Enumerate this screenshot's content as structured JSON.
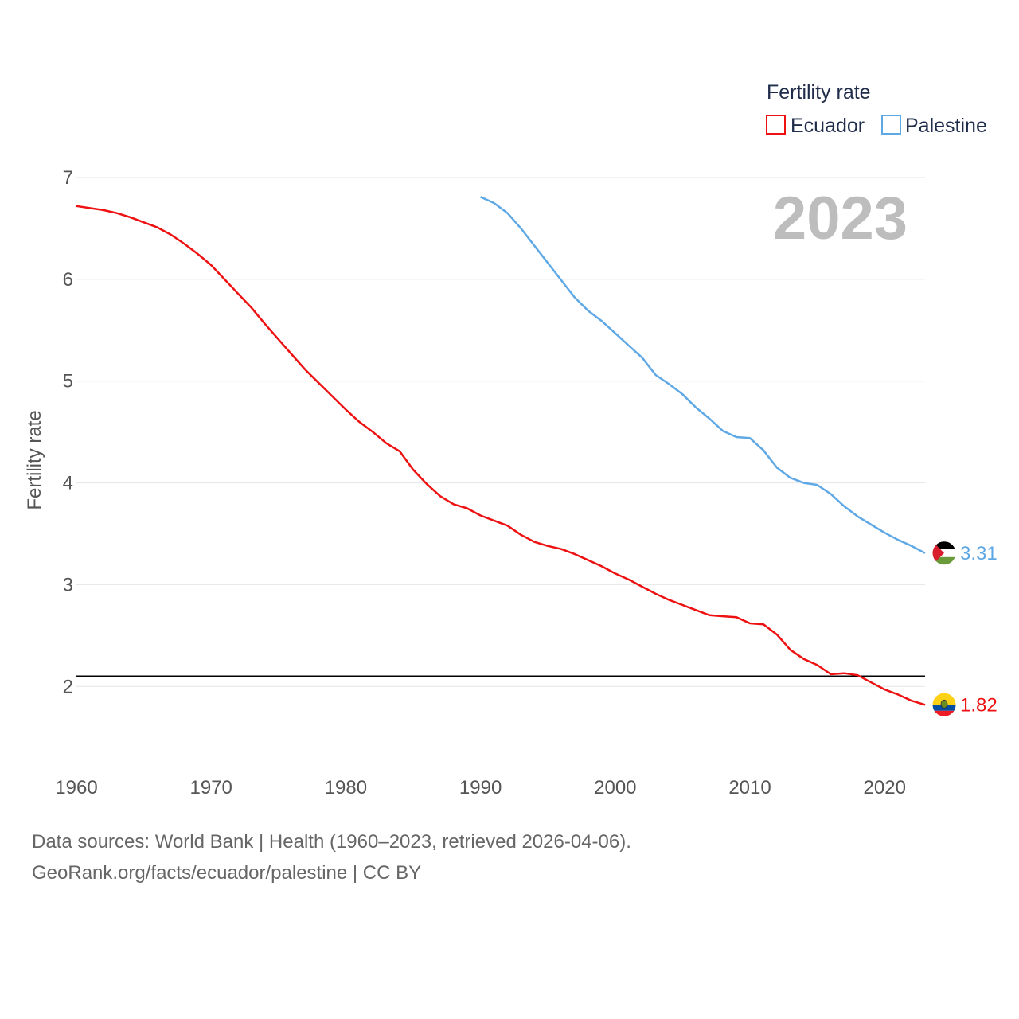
{
  "chart_data": {
    "type": "line",
    "legend_title": "Fertility rate",
    "ylabel": "Fertility rate",
    "year_label": "2023",
    "xlim": [
      1960,
      2023
    ],
    "ylim": [
      1.4,
      7.0
    ],
    "x_ticks": [
      1960,
      1970,
      1980,
      1990,
      2000,
      2010,
      2020
    ],
    "y_ticks": [
      2,
      3,
      4,
      5,
      6,
      7
    ],
    "reference_line": 2.1,
    "series": [
      {
        "name": "Ecuador",
        "color": "#ee1111",
        "end_label": "1.82",
        "flag": "ecuador-flag",
        "x": [
          1960,
          1961,
          1962,
          1963,
          1964,
          1965,
          1966,
          1967,
          1968,
          1969,
          1970,
          1971,
          1972,
          1973,
          1974,
          1975,
          1976,
          1977,
          1978,
          1979,
          1980,
          1981,
          1982,
          1983,
          1984,
          1985,
          1986,
          1987,
          1988,
          1989,
          1990,
          1991,
          1992,
          1993,
          1994,
          1995,
          1996,
          1997,
          1998,
          1999,
          2000,
          2001,
          2002,
          2003,
          2004,
          2005,
          2006,
          2007,
          2008,
          2009,
          2010,
          2011,
          2012,
          2013,
          2014,
          2015,
          2016,
          2017,
          2018,
          2019,
          2020,
          2021,
          2022,
          2023
        ],
        "values": [
          6.72,
          6.7,
          6.68,
          6.65,
          6.61,
          6.56,
          6.51,
          6.44,
          6.35,
          6.25,
          6.14,
          6.0,
          5.86,
          5.72,
          5.56,
          5.41,
          5.26,
          5.11,
          4.98,
          4.85,
          4.72,
          4.6,
          4.5,
          4.39,
          4.31,
          4.13,
          3.99,
          3.87,
          3.79,
          3.75,
          3.68,
          3.63,
          3.58,
          3.49,
          3.42,
          3.38,
          3.35,
          3.3,
          3.24,
          3.18,
          3.11,
          3.05,
          2.98,
          2.91,
          2.85,
          2.8,
          2.75,
          2.7,
          2.69,
          2.68,
          2.62,
          2.61,
          2.51,
          2.36,
          2.27,
          2.21,
          2.12,
          2.13,
          2.11,
          2.04,
          1.97,
          1.92,
          1.86,
          1.82
        ]
      },
      {
        "name": "Palestine",
        "color": "#5fa8e6",
        "end_label": "3.31",
        "flag": "palestine-flag",
        "x": [
          1990,
          1991,
          1992,
          1993,
          1994,
          1995,
          1996,
          1997,
          1998,
          1999,
          2000,
          2001,
          2002,
          2003,
          2004,
          2005,
          2006,
          2007,
          2008,
          2009,
          2010,
          2011,
          2012,
          2013,
          2014,
          2015,
          2016,
          2017,
          2018,
          2019,
          2020,
          2021,
          2022,
          2023
        ],
        "values": [
          6.81,
          6.75,
          6.65,
          6.5,
          6.33,
          6.16,
          5.99,
          5.82,
          5.69,
          5.59,
          5.47,
          5.35,
          5.23,
          5.06,
          4.97,
          4.87,
          4.74,
          4.63,
          4.51,
          4.45,
          4.44,
          4.32,
          4.15,
          4.05,
          4.0,
          3.98,
          3.89,
          3.77,
          3.67,
          3.59,
          3.51,
          3.44,
          3.38,
          3.31
        ]
      }
    ]
  },
  "footer": {
    "line1": "Data sources: World Bank | Health (1960–2023, retrieved 2026-04-06).",
    "line2": "GeoRank.org/facts/ecuador/palestine | CC BY"
  }
}
